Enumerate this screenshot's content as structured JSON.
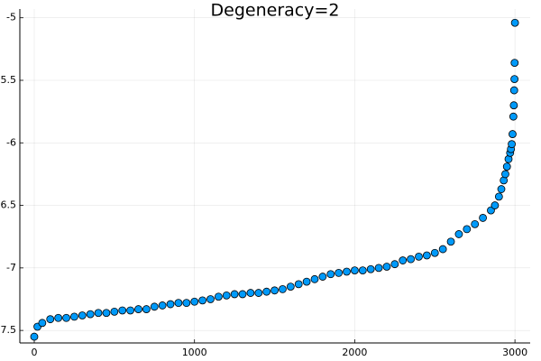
{
  "chart_data": {
    "type": "scatter",
    "title": "Degeneracy=2",
    "series": [
      {
        "color": "#009afa",
        "x": [
          0,
          20,
          50,
          100,
          150,
          200,
          250,
          300,
          350,
          400,
          450,
          500,
          550,
          600,
          650,
          700,
          750,
          800,
          850,
          900,
          950,
          1000,
          1050,
          1100,
          1150,
          1200,
          1250,
          1300,
          1350,
          1400,
          1450,
          1500,
          1550,
          1600,
          1650,
          1700,
          1750,
          1800,
          1850,
          1900,
          1950,
          2000,
          2050,
          2100,
          2150,
          2200,
          2250,
          2300,
          2350,
          2400,
          2450,
          2500,
          2550,
          2600,
          2650,
          2700,
          2750,
          2800,
          2850,
          2875,
          2900,
          2915,
          2930,
          2940,
          2950,
          2960,
          2970,
          2975,
          2980,
          2985,
          2990,
          2993,
          2995,
          2997,
          2998,
          3000
        ],
        "values": [
          -7.55,
          -7.47,
          -7.44,
          -7.41,
          -7.4,
          -7.4,
          -7.39,
          -7.38,
          -7.37,
          -7.36,
          -7.36,
          -7.35,
          -7.34,
          -7.34,
          -7.33,
          -7.33,
          -7.31,
          -7.3,
          -7.29,
          -7.28,
          -7.28,
          -7.27,
          -7.26,
          -7.25,
          -7.23,
          -7.22,
          -7.21,
          -7.21,
          -7.2,
          -7.2,
          -7.19,
          -7.18,
          -7.17,
          -7.15,
          -7.13,
          -7.11,
          -7.09,
          -7.07,
          -7.05,
          -7.04,
          -7.03,
          -7.02,
          -7.02,
          -7.01,
          -7.0,
          -6.99,
          -6.97,
          -6.94,
          -6.93,
          -6.91,
          -6.9,
          -6.88,
          -6.85,
          -6.79,
          -6.73,
          -6.69,
          -6.65,
          -6.6,
          -6.54,
          -6.5,
          -6.43,
          -6.37,
          -6.3,
          -6.25,
          -6.19,
          -6.13,
          -6.08,
          -6.05,
          -6.01,
          -5.93,
          -5.79,
          -5.7,
          -5.58,
          -5.49,
          -5.36,
          -5.04
        ]
      }
    ],
    "xlim": [
      -90,
      3095
    ],
    "ylim": [
      -7.6,
      -4.93
    ],
    "xticks": [
      0,
      1000,
      2000,
      3000
    ],
    "yticks": [
      -7.5,
      -7.0,
      -6.5,
      -6.0,
      -5.5,
      -5.0
    ],
    "grid": true
  }
}
